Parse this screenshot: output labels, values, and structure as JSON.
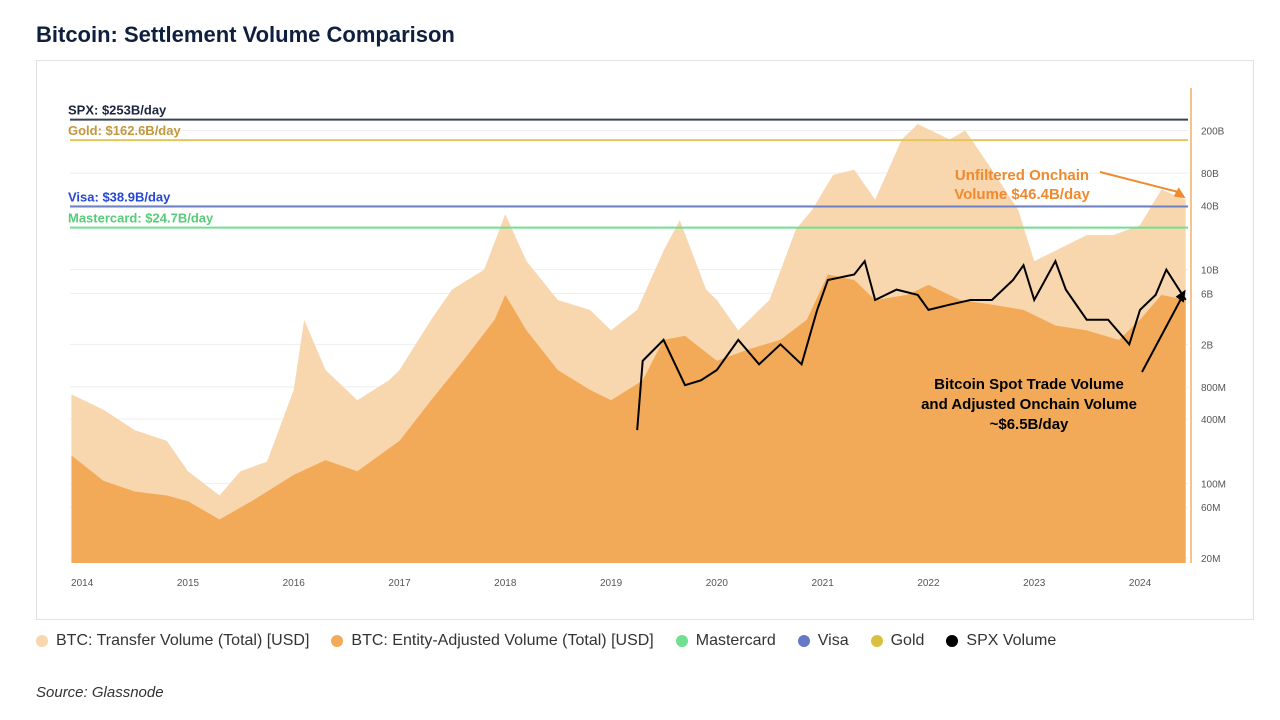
{
  "title": "Bitcoin: Settlement Volume Comparison",
  "source": "Source: Glassnode",
  "chart_data": {
    "type": "area",
    "yscale": "log",
    "ylim": [
      18000000,
      500000000000
    ],
    "xlim": [
      "2013-11-20",
      "2024-06-15"
    ],
    "grid": "horizontal",
    "legend_position": "bottom",
    "x_ticks": [
      "2014",
      "2015",
      "2016",
      "2017",
      "2018",
      "2019",
      "2020",
      "2021",
      "2022",
      "2023",
      "2024"
    ],
    "y_ticks": [
      {
        "v": 200000000000.0,
        "label": "200B"
      },
      {
        "v": 80000000000.0,
        "label": "80B"
      },
      {
        "v": 40000000000.0,
        "label": "40B"
      },
      {
        "v": 10000000000.0,
        "label": "10B"
      },
      {
        "v": 6000000000.0,
        "label": "6B"
      },
      {
        "v": 2000000000.0,
        "label": "2B"
      },
      {
        "v": 800000000.0,
        "label": "800M"
      },
      {
        "v": 400000000.0,
        "label": "400M"
      },
      {
        "v": 100000000.0,
        "label": "100M"
      },
      {
        "v": 60000000.0,
        "label": "60M"
      },
      {
        "v": 20000000.0,
        "label": "20M"
      }
    ],
    "series": [
      {
        "name": "BTC: Transfer Volume (Total) [USD]",
        "color": "#f8d6ae",
        "type": "area",
        "points": [
          [
            "2013-11-25",
            680000000.0
          ],
          [
            "2014-03-15",
            490000000.0
          ],
          [
            "2014-07-01",
            315000000.0
          ],
          [
            "2014-10-20",
            250000000.0
          ],
          [
            "2015-01-01",
            130000000.0
          ],
          [
            "2015-04-20",
            77000000.0
          ],
          [
            "2015-07-01",
            130000000.0
          ],
          [
            "2015-10-01",
            160000000.0
          ],
          [
            "2016-01-01",
            750000000.0
          ],
          [
            "2016-02-06",
            3400000000.0
          ],
          [
            "2016-04-20",
            1150000000.0
          ],
          [
            "2016-08-08",
            600000000.0
          ],
          [
            "2016-11-25",
            920000000.0
          ],
          [
            "2017-01-01",
            1150000000.0
          ],
          [
            "2017-04-20",
            3400000000.0
          ],
          [
            "2017-07-01",
            6500000000.0
          ],
          [
            "2017-10-20",
            10000000000.0
          ],
          [
            "2018-01-01",
            33000000000.0
          ],
          [
            "2018-03-15",
            12000000000.0
          ],
          [
            "2018-07-01",
            5200000000.0
          ],
          [
            "2018-10-20",
            4200000000.0
          ],
          [
            "2019-01-01",
            2700000000.0
          ],
          [
            "2019-04-01",
            4200000000.0
          ],
          [
            "2019-07-01",
            15000000000.0
          ],
          [
            "2019-08-26",
            29000000000.0
          ],
          [
            "2019-11-25",
            6500000000.0
          ],
          [
            "2020-01-01",
            5200000000.0
          ],
          [
            "2020-03-15",
            2700000000.0
          ],
          [
            "2020-07-01",
            5200000000.0
          ],
          [
            "2020-10-01",
            24000000000.0
          ],
          [
            "2020-11-25",
            36000000000.0
          ],
          [
            "2021-02-06",
            77000000000.0
          ],
          [
            "2021-04-20",
            86000000000.0
          ],
          [
            "2021-07-01",
            45000000000.0
          ],
          [
            "2021-10-01",
            165000000000.0
          ],
          [
            "2021-11-25",
            230000000000.0
          ],
          [
            "2022-03-15",
            165000000000.0
          ],
          [
            "2022-05-08",
            200000000000.0
          ],
          [
            "2022-08-08",
            86000000000.0
          ],
          [
            "2022-11-07",
            36000000000.0
          ],
          [
            "2023-01-01",
            12000000000.0
          ],
          [
            "2023-03-15",
            15000000000.0
          ],
          [
            "2023-07-01",
            21000000000.0
          ],
          [
            "2023-10-01",
            21000000000.0
          ],
          [
            "2024-01-01",
            26000000000.0
          ],
          [
            "2024-03-15",
            56000000000.0
          ],
          [
            "2024-06-07",
            45000000000.0
          ]
        ]
      },
      {
        "name": "BTC: Entity-Adjusted Volume (Total) [USD]",
        "color": "#f2aa58",
        "type": "area",
        "points": [
          [
            "2013-11-25",
            183000000.0
          ],
          [
            "2014-03-15",
            106000000.0
          ],
          [
            "2014-07-01",
            84000000.0
          ],
          [
            "2014-10-20",
            77000000.0
          ],
          [
            "2015-01-01",
            68000000.0
          ],
          [
            "2015-04-20",
            46000000.0
          ],
          [
            "2015-08-08",
            68000000.0
          ],
          [
            "2016-01-01",
            120000000.0
          ],
          [
            "2016-04-20",
            165000000.0
          ],
          [
            "2016-08-08",
            130000000.0
          ],
          [
            "2017-01-01",
            250000000.0
          ],
          [
            "2017-04-20",
            600000000.0
          ],
          [
            "2017-08-08",
            1400000000.0
          ],
          [
            "2017-11-25",
            3400000000.0
          ],
          [
            "2018-01-01",
            5800000000.0
          ],
          [
            "2018-03-15",
            2700000000.0
          ],
          [
            "2018-07-01",
            1150000000.0
          ],
          [
            "2018-10-20",
            750000000.0
          ],
          [
            "2019-01-01",
            600000000.0
          ],
          [
            "2019-04-20",
            920000000.0
          ],
          [
            "2019-07-01",
            2200000000.0
          ],
          [
            "2019-09-13",
            2400000000.0
          ],
          [
            "2020-01-01",
            1400000000.0
          ],
          [
            "2020-04-20",
            1800000000.0
          ],
          [
            "2020-08-08",
            2200000000.0
          ],
          [
            "2020-11-07",
            3400000000.0
          ],
          [
            "2021-01-19",
            9000000000.0
          ],
          [
            "2021-04-20",
            8000000000.0
          ],
          [
            "2021-07-01",
            5200000000.0
          ],
          [
            "2021-10-20",
            5800000000.0
          ],
          [
            "2022-01-01",
            7200000000.0
          ],
          [
            "2022-04-20",
            5200000000.0
          ],
          [
            "2022-08-08",
            4700000000.0
          ],
          [
            "2022-11-25",
            4200000000.0
          ],
          [
            "2023-03-15",
            3000000000.0
          ],
          [
            "2023-07-01",
            2700000000.0
          ],
          [
            "2023-10-20",
            2200000000.0
          ],
          [
            "2024-01-01",
            3400000000.0
          ],
          [
            "2024-03-15",
            5800000000.0
          ],
          [
            "2024-06-07",
            5200000000.0
          ]
        ]
      },
      {
        "name": "SPX Volume",
        "color": "#000000",
        "type": "line",
        "points": [
          [
            "2019-04-01",
            315000000.0
          ],
          [
            "2019-04-20",
            1400000000.0
          ],
          [
            "2019-07-01",
            2200000000.0
          ],
          [
            "2019-09-13",
            830000000.0
          ],
          [
            "2019-11-07",
            920000000.0
          ],
          [
            "2020-01-01",
            1150000000.0
          ],
          [
            "2020-03-15",
            2200000000.0
          ],
          [
            "2020-05-26",
            1300000000.0
          ],
          [
            "2020-08-08",
            2000000000.0
          ],
          [
            "2020-10-20",
            1300000000.0
          ],
          [
            "2020-12-13",
            4200000000.0
          ],
          [
            "2021-01-19",
            8000000000.0
          ],
          [
            "2021-04-20",
            9000000000.0
          ],
          [
            "2021-05-26",
            12000000000.0
          ],
          [
            "2021-07-01",
            5200000000.0
          ],
          [
            "2021-09-13",
            6500000000.0
          ],
          [
            "2021-11-25",
            5800000000.0
          ],
          [
            "2022-01-01",
            4200000000.0
          ],
          [
            "2022-03-15",
            4700000000.0
          ],
          [
            "2022-05-26",
            5200000000.0
          ],
          [
            "2022-08-08",
            5200000000.0
          ],
          [
            "2022-10-20",
            8000000000.0
          ],
          [
            "2022-11-25",
            11000000000.0
          ],
          [
            "2023-01-01",
            5200000000.0
          ],
          [
            "2023-03-15",
            12000000000.0
          ],
          [
            "2023-04-20",
            6500000000.0
          ],
          [
            "2023-07-01",
            3400000000.0
          ],
          [
            "2023-09-13",
            3400000000.0
          ],
          [
            "2023-11-25",
            2000000000.0
          ],
          [
            "2024-01-01",
            4200000000.0
          ],
          [
            "2024-02-24",
            5800000000.0
          ],
          [
            "2024-04-01",
            10000000000.0
          ],
          [
            "2024-06-07",
            5200000000.0
          ]
        ]
      }
    ],
    "reference_lines": [
      {
        "name": "SPX",
        "label": "SPX: $253B/day",
        "value": 253000000000.0,
        "color": "#3b4256",
        "text_color": "#1c2540"
      },
      {
        "name": "Gold",
        "label": "Gold: $162.6B/day",
        "value": 162600000000.0,
        "color": "#e6c65c",
        "text_color": "#c4973a"
      },
      {
        "name": "Visa",
        "label": "Visa: $38.9B/day",
        "value": 38900000000.0,
        "color": "#6d80c2",
        "text_color": "#2547d6"
      },
      {
        "name": "Mastercard",
        "label": "Mastercard: $24.7B/day",
        "value": 24700000000.0,
        "color": "#6fe08f",
        "text_color": "#57cc78"
      }
    ],
    "annotations": [
      {
        "lines": [
          "Unfiltered Onchain",
          "Volume $46.4B/day"
        ],
        "color": "#ef8a2e",
        "target": [
          "2024-06-07",
          46400000000.0
        ]
      },
      {
        "lines": [
          "Bitcoin Spot Trade Volume",
          "and Adjusted Onchain Volume",
          "~$6.5B/day"
        ],
        "color": "#000000",
        "target": [
          "2024-06-07",
          6500000000.0
        ]
      }
    ],
    "legend": [
      {
        "label": "BTC: Transfer Volume (Total) [USD]",
        "color": "#f8d6ae"
      },
      {
        "label": "BTC: Entity-Adjusted Volume (Total) [USD]",
        "color": "#f2aa58"
      },
      {
        "label": "Mastercard",
        "color": "#6fe08f"
      },
      {
        "label": "Visa",
        "color": "#6678c8"
      },
      {
        "label": "Gold",
        "color": "#d9bf3f"
      },
      {
        "label": "SPX Volume",
        "color": "#000000"
      }
    ]
  }
}
